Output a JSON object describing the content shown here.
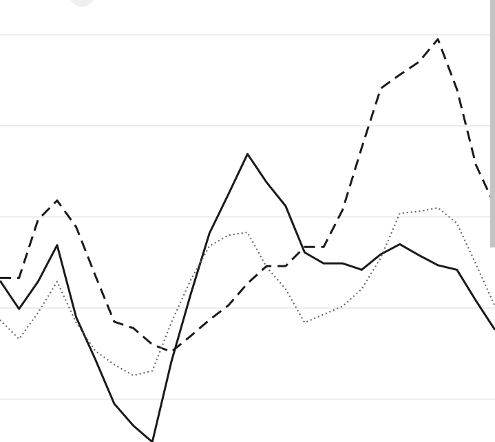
{
  "chart_data": {
    "type": "line",
    "title": "",
    "xlabel": "",
    "ylabel": "",
    "x": [
      0,
      1,
      2,
      3,
      4,
      5,
      6,
      7,
      8,
      9,
      10,
      11,
      12,
      13,
      14,
      15,
      16,
      17,
      18,
      19,
      20,
      21,
      22,
      23,
      24,
      25,
      26
    ],
    "xlim": [
      0,
      26
    ],
    "ylim": [
      -0.47,
      4.38
    ],
    "grid": true,
    "gridlines": [
      0,
      1,
      2,
      3,
      4
    ],
    "colors": {
      "lines": "#1a1a1a",
      "grid": "#e8ecec"
    },
    "series": [
      {
        "style": "solid",
        "values": [
          1.3,
          0.99,
          1.29,
          1.69,
          0.9,
          0.44,
          -0.05,
          -0.29,
          -0.47,
          0.41,
          1.14,
          1.82,
          2.25,
          2.69,
          2.38,
          2.12,
          1.61,
          1.49,
          1.49,
          1.42,
          1.59,
          1.7,
          1.58,
          1.47,
          1.42,
          1.08,
          0.76
        ]
      },
      {
        "style": "dashed",
        "values": [
          1.33,
          1.33,
          1.97,
          2.18,
          1.89,
          1.36,
          0.85,
          0.78,
          0.6,
          0.52,
          0.69,
          0.87,
          1.03,
          1.27,
          1.46,
          1.46,
          1.67,
          1.67,
          2.08,
          2.76,
          3.41,
          3.56,
          3.7,
          3.95,
          3.4,
          2.57,
          2.12
        ]
      },
      {
        "style": "dotted",
        "values": [
          0.87,
          0.66,
          0.95,
          1.29,
          0.84,
          0.53,
          0.38,
          0.26,
          0.31,
          0.84,
          1.3,
          1.68,
          1.8,
          1.83,
          1.45,
          1.21,
          0.84,
          0.93,
          1.02,
          1.21,
          1.55,
          2.04,
          2.06,
          2.1,
          1.93,
          1.48,
          1.02
        ]
      }
    ]
  }
}
